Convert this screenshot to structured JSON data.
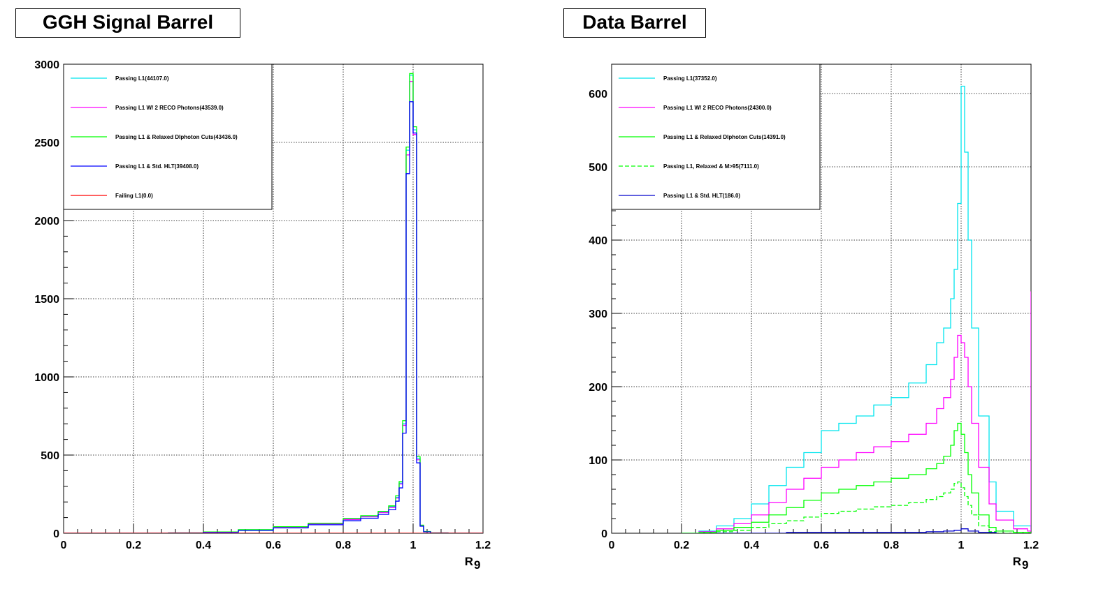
{
  "chart_data": [
    {
      "type": "line",
      "title": "GGH Signal Barrel",
      "xlabel": "R",
      "xlabel_sub": "9",
      "xlim": [
        0,
        1.2
      ],
      "ylim": [
        0,
        3000
      ],
      "x_ticks": [
        "0",
        "0.2",
        "0.4",
        "0.6",
        "0.8",
        "1",
        "1.2"
      ],
      "y_ticks": [
        "0",
        "500",
        "1000",
        "1500",
        "2000",
        "2500",
        "3000"
      ],
      "x_tick_values": [
        0,
        0.2,
        0.4,
        0.6,
        0.8,
        1,
        1.2
      ],
      "y_tick_values": [
        0,
        500,
        1000,
        1500,
        2000,
        2500,
        3000
      ],
      "grid": true,
      "legend_position": "top-left",
      "series": [
        {
          "name": "Passing L1(44107.0)",
          "color": "#00e5ee",
          "style": "solid",
          "x": [
            0,
            0.3,
            0.4,
            0.5,
            0.6,
            0.7,
            0.8,
            0.85,
            0.9,
            0.93,
            0.95,
            0.96,
            0.97,
            0.98,
            0.99,
            1.0,
            1.01,
            1.02,
            1.03,
            1.05,
            1.1,
            1.2
          ],
          "y": [
            0,
            2,
            8,
            22,
            40,
            62,
            90,
            108,
            135,
            170,
            230,
            320,
            700,
            2450,
            2930,
            2580,
            480,
            50,
            10,
            2,
            0,
            0
          ]
        },
        {
          "name": "Passing L1 W/ 2 RECO Photons(43539.0)",
          "color": "#ff00ff",
          "style": "solid",
          "x": [
            0,
            0.3,
            0.4,
            0.5,
            0.6,
            0.7,
            0.8,
            0.85,
            0.9,
            0.93,
            0.95,
            0.96,
            0.97,
            0.98,
            0.99,
            1.0,
            1.01,
            1.02,
            1.03,
            1.05,
            1.1,
            1.2
          ],
          "y": [
            0,
            2,
            8,
            21,
            39,
            60,
            88,
            105,
            132,
            165,
            225,
            315,
            690,
            2420,
            2890,
            2550,
            470,
            48,
            10,
            2,
            0,
            0
          ]
        },
        {
          "name": "Passing L1 & Relaxed DIphoton Cuts(43436.0)",
          "color": "#00ff00",
          "style": "solid",
          "x": [
            0,
            0.3,
            0.4,
            0.5,
            0.6,
            0.7,
            0.8,
            0.85,
            0.9,
            0.93,
            0.95,
            0.96,
            0.97,
            0.98,
            0.99,
            1.0,
            1.01,
            1.02,
            1.03,
            1.05,
            1.1,
            1.2
          ],
          "y": [
            0,
            2,
            8,
            23,
            42,
            64,
            95,
            112,
            140,
            175,
            240,
            330,
            720,
            2470,
            2940,
            2600,
            490,
            52,
            11,
            2,
            0,
            0
          ]
        },
        {
          "name": "Passing L1 & Std. HLT(39408.0)",
          "color": "#0000ff",
          "style": "solid",
          "x": [
            0,
            0.3,
            0.4,
            0.5,
            0.6,
            0.7,
            0.8,
            0.85,
            0.9,
            0.93,
            0.95,
            0.96,
            0.97,
            0.98,
            0.99,
            1.0,
            1.01,
            1.02,
            1.03,
            1.05,
            1.1,
            1.2
          ],
          "y": [
            0,
            1,
            6,
            18,
            34,
            54,
            80,
            96,
            120,
            150,
            205,
            290,
            640,
            2300,
            2760,
            2560,
            450,
            45,
            9,
            1,
            0,
            0
          ]
        },
        {
          "name": "Failing L1(0.0)",
          "color": "#ff0000",
          "style": "solid",
          "x": [
            0,
            1.2
          ],
          "y": [
            0,
            0
          ]
        }
      ]
    },
    {
      "type": "line",
      "title": "Data Barrel",
      "xlabel": "R",
      "xlabel_sub": "9",
      "xlim": [
        0,
        1.2
      ],
      "ylim": [
        0,
        640
      ],
      "x_ticks": [
        "0",
        "0.2",
        "0.4",
        "0.6",
        "0.8",
        "1",
        "1.2"
      ],
      "y_ticks": [
        "0",
        "100",
        "200",
        "300",
        "400",
        "500",
        "600"
      ],
      "x_tick_values": [
        0,
        0.2,
        0.4,
        0.6,
        0.8,
        1,
        1.2
      ],
      "y_tick_values": [
        0,
        100,
        200,
        300,
        400,
        500,
        600
      ],
      "grid": true,
      "legend_position": "top-left",
      "series": [
        {
          "name": "Passing L1(37352.0)",
          "color": "#00e5ee",
          "style": "solid",
          "x": [
            0.2,
            0.25,
            0.3,
            0.35,
            0.4,
            0.45,
            0.5,
            0.55,
            0.6,
            0.65,
            0.7,
            0.75,
            0.8,
            0.85,
            0.9,
            0.93,
            0.95,
            0.97,
            0.98,
            0.99,
            1.0,
            1.01,
            1.02,
            1.03,
            1.05,
            1.08,
            1.1,
            1.15,
            1.2
          ],
          "y": [
            0,
            3,
            10,
            20,
            40,
            65,
            90,
            110,
            140,
            150,
            160,
            175,
            185,
            205,
            230,
            260,
            280,
            320,
            360,
            450,
            610,
            520,
            400,
            280,
            160,
            70,
            30,
            10,
            5
          ]
        },
        {
          "name": "Passing L1 W/ 2 RECO Photons(24300.0)",
          "color": "#ff00ff",
          "style": "solid",
          "x": [
            0.2,
            0.25,
            0.3,
            0.35,
            0.4,
            0.45,
            0.5,
            0.55,
            0.6,
            0.65,
            0.7,
            0.75,
            0.8,
            0.85,
            0.9,
            0.93,
            0.95,
            0.97,
            0.98,
            0.99,
            1.0,
            1.01,
            1.02,
            1.03,
            1.05,
            1.08,
            1.1,
            1.15,
            1.19,
            1.2
          ],
          "y": [
            0,
            2,
            6,
            13,
            25,
            42,
            60,
            75,
            90,
            100,
            110,
            118,
            125,
            135,
            150,
            170,
            185,
            210,
            240,
            270,
            260,
            240,
            200,
            150,
            90,
            40,
            18,
            6,
            3,
            330
          ]
        },
        {
          "name": "Passing L1 & Relaxed DIphoton Cuts(14391.0)",
          "color": "#00ff00",
          "style": "solid",
          "x": [
            0.2,
            0.25,
            0.3,
            0.35,
            0.4,
            0.45,
            0.5,
            0.55,
            0.6,
            0.65,
            0.7,
            0.75,
            0.8,
            0.85,
            0.9,
            0.93,
            0.95,
            0.97,
            0.98,
            0.99,
            1.0,
            1.01,
            1.02,
            1.03,
            1.05,
            1.08,
            1.1,
            1.15,
            1.2
          ],
          "y": [
            0,
            1,
            4,
            8,
            15,
            25,
            35,
            45,
            55,
            60,
            65,
            70,
            75,
            80,
            88,
            95,
            105,
            120,
            140,
            150,
            135,
            110,
            80,
            55,
            25,
            8,
            3,
            1,
            0
          ]
        },
        {
          "name": "Passing L1, Relaxed & M>95(7111.0)",
          "color": "#00ff00",
          "style": "dashed",
          "x": [
            0.25,
            0.3,
            0.35,
            0.4,
            0.45,
            0.5,
            0.55,
            0.6,
            0.65,
            0.7,
            0.75,
            0.8,
            0.85,
            0.9,
            0.93,
            0.95,
            0.97,
            0.98,
            0.99,
            1.0,
            1.01,
            1.02,
            1.03,
            1.05,
            1.08,
            1.1,
            1.2
          ],
          "y": [
            0,
            2,
            4,
            8,
            13,
            17,
            22,
            27,
            30,
            33,
            36,
            38,
            42,
            46,
            50,
            55,
            60,
            68,
            70,
            62,
            50,
            38,
            25,
            10,
            2,
            0,
            0
          ]
        },
        {
          "name": "Passing L1 & Std. HLT(186.0)",
          "color": "#0000cc",
          "style": "solid",
          "x": [
            0.3,
            0.5,
            0.7,
            0.9,
            0.95,
            0.98,
            1.0,
            1.02,
            1.05,
            1.1
          ],
          "y": [
            0,
            1,
            1,
            2,
            3,
            4,
            6,
            3,
            1,
            0
          ]
        }
      ]
    }
  ]
}
